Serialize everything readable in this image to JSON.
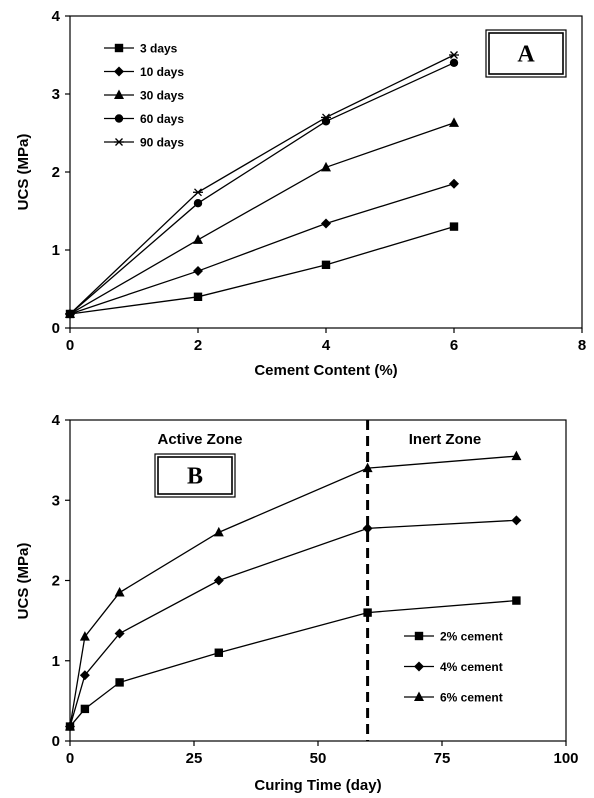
{
  "chart_data": [
    {
      "type": "line",
      "panel_label": "A",
      "xlabel": "Cement Content (%)",
      "ylabel": "UCS (MPa)",
      "xlim": [
        0,
        8
      ],
      "ylim": [
        0,
        4
      ],
      "x_ticks": [
        "0",
        "2",
        "4",
        "6",
        "8"
      ],
      "y_ticks": [
        "0",
        "1",
        "2",
        "3",
        "4"
      ],
      "grid": false,
      "legend_position": "top-left",
      "series": [
        {
          "name": "3 days",
          "marker": "square",
          "x": [
            0,
            2,
            4,
            6
          ],
          "y": [
            0.18,
            0.4,
            0.81,
            1.3
          ]
        },
        {
          "name": "10 days",
          "marker": "diamond",
          "x": [
            0,
            2,
            4,
            6
          ],
          "y": [
            0.18,
            0.73,
            1.34,
            1.85
          ]
        },
        {
          "name": "30 days",
          "marker": "triangle",
          "x": [
            0,
            2,
            4,
            6
          ],
          "y": [
            0.18,
            1.13,
            2.06,
            2.63
          ]
        },
        {
          "name": "60 days",
          "marker": "circle",
          "x": [
            0,
            2,
            4,
            6
          ],
          "y": [
            0.18,
            1.6,
            2.65,
            3.4
          ]
        },
        {
          "name": "90 days",
          "marker": "star",
          "x": [
            0,
            2,
            4,
            6
          ],
          "y": [
            0.18,
            1.74,
            2.7,
            3.5
          ]
        }
      ]
    },
    {
      "type": "line",
      "panel_label": "B",
      "xlabel": "Curing Time (day)",
      "ylabel": "UCS (MPa)",
      "xlim": [
        0,
        100
      ],
      "ylim": [
        0,
        4
      ],
      "x_ticks": [
        "0",
        "25",
        "50",
        "75",
        "100"
      ],
      "y_ticks": [
        "0",
        "1",
        "2",
        "3",
        "4"
      ],
      "grid": false,
      "legend_position": "bottom-right",
      "annotations": [
        {
          "text": "Active Zone",
          "position": "top-left"
        },
        {
          "text": "Inert Zone",
          "position": "top-right"
        }
      ],
      "vertical_line": {
        "x": 60,
        "style": "dashed"
      },
      "series": [
        {
          "name": "2% cement",
          "marker": "square",
          "x": [
            0,
            3,
            10,
            30,
            60,
            90
          ],
          "y": [
            0.18,
            0.4,
            0.73,
            1.1,
            1.6,
            1.75
          ]
        },
        {
          "name": "4% cement",
          "marker": "diamond",
          "x": [
            0,
            3,
            10,
            30,
            60,
            90
          ],
          "y": [
            0.18,
            0.82,
            1.34,
            2.0,
            2.65,
            2.75
          ]
        },
        {
          "name": "6% cement",
          "marker": "triangle",
          "x": [
            0,
            3,
            10,
            30,
            60,
            90
          ],
          "y": [
            0.18,
            1.3,
            1.85,
            2.6,
            3.4,
            3.55
          ]
        }
      ]
    }
  ]
}
